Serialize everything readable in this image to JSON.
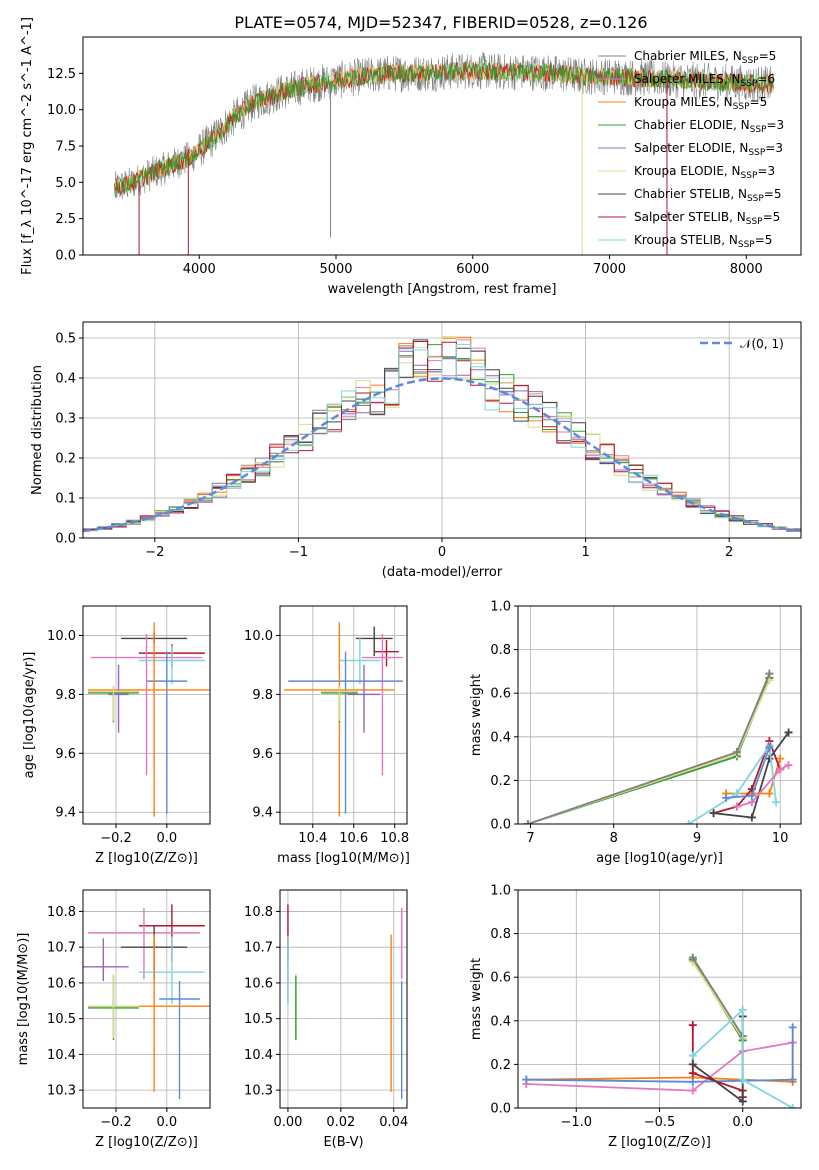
{
  "figure": {
    "title": "PLATE=0574, MJD=52347, FIBERID=0528, z=0.126"
  },
  "colors": {
    "chabrier_miles": "#808080",
    "salpeter_miles": "#e377c2",
    "kroupa_miles": "#ff7f0e",
    "chabrier_elodie": "#2ca02c",
    "salpeter_elodie": "#9467bd",
    "kroupa_elodie": "#dbdb8d",
    "chabrier_stelib": "#444444",
    "salpeter_stelib": "#b2182b",
    "kroupa_stelib": "#7fd6dd",
    "gaussian": "#5b8bd9",
    "blue_extra": "#5b8bd9",
    "pink_extra": "#e377c2",
    "grid": "#b0b0b0"
  },
  "chart_data": [
    {
      "id": "spectrum",
      "type": "line",
      "title": "PLATE=0574, MJD=52347, FIBERID=0528, z=0.126",
      "xlabel": "wavelength [Angstrom, rest frame]",
      "ylabel": "Flux [f_λ 10^-17 erg cm^-2 s^-1 A^-1]",
      "xlim": [
        3150,
        8400
      ],
      "ylim": [
        0,
        15
      ],
      "xticks": [
        4000,
        5000,
        6000,
        7000,
        8000
      ],
      "yticks": [
        "0.0",
        "2.5",
        "5.0",
        "7.5",
        "10.0",
        "12.5"
      ],
      "grid": false,
      "legend_position": "upper right",
      "legend": [
        "Chabrier MILES, N_SSP=5",
        "Salpeter MILES, N_SSP=6",
        "Kroupa MILES, N_SSP=5",
        "Chabrier ELODIE, N_SSP=3",
        "Salpeter ELODIE, N_SSP=3",
        "Kroupa ELODIE, N_SSP=3",
        "Chabrier STELIB, N_SSP=5",
        "Salpeter STELIB, N_SSP=5",
        "Kroupa STELIB, N_SSP=5"
      ],
      "continuum": {
        "x": [
          3380,
          3500,
          3650,
          3800,
          3950,
          4100,
          4250,
          4400,
          4600,
          4800,
          5000,
          5200,
          5400,
          5600,
          5800,
          6000,
          6200,
          6400,
          6600,
          6800,
          7000,
          7200,
          7400,
          7600,
          7800,
          8000,
          8200
        ],
        "y": [
          4.6,
          4.9,
          5.6,
          6.2,
          6.8,
          8.0,
          9.4,
          10.5,
          11.2,
          11.7,
          12.0,
          12.3,
          12.5,
          12.5,
          12.6,
          12.7,
          12.6,
          12.6,
          12.5,
          12.3,
          12.3,
          12.2,
          12.1,
          12.0,
          11.9,
          11.8,
          11.7
        ]
      },
      "spikes": [
        {
          "x": 3560,
          "y": 0.0
        },
        {
          "x": 3920,
          "y": 0.0
        },
        {
          "x": 4960,
          "y": 1.2
        },
        {
          "x": 6800,
          "y": 0.0
        },
        {
          "x": 7420,
          "y": 0.0
        }
      ]
    },
    {
      "id": "residuals",
      "type": "histogram",
      "xlabel": "(data-model)/error",
      "ylabel": "Normed distribution",
      "xlim": [
        -2.5,
        2.5
      ],
      "ylim": [
        0,
        0.54
      ],
      "xticks": [
        "−2",
        "−1",
        "0",
        "1",
        "2"
      ],
      "yticks": [
        "0.0",
        "0.1",
        "0.2",
        "0.3",
        "0.4",
        "0.5"
      ],
      "grid": true,
      "legend": [
        "𝒩(0, 1)"
      ],
      "legend_position": "upper right",
      "bin_width": 0.1,
      "bin_start": -2.5,
      "gaussian": {
        "mean": 0,
        "sigma": 1
      }
    },
    {
      "id": "age_vs_Z",
      "type": "errorbar",
      "xlabel": "Z [log10(Z/Z⊙)]",
      "ylabel": "age [log10(age/yr)]",
      "xlim": [
        -0.33,
        0.17
      ],
      "ylim": [
        9.36,
        10.1
      ],
      "xticks": [
        "−0.2",
        "0.0"
      ],
      "xtick_values": [
        -0.2,
        0.0
      ],
      "yticks": [
        "9.4",
        "9.6",
        "9.8",
        "10.0"
      ],
      "ytick_values": [
        9.4,
        9.6,
        9.8,
        10.0
      ],
      "grid": true,
      "points": [
        {
          "c": "chabrier_stelib",
          "x": -0.05,
          "xerr": 0.13,
          "y": 9.99,
          "yerr": [
            0.02,
            0.02
          ]
        },
        {
          "c": "salpeter_stelib",
          "x": 0.02,
          "xerr": 0.13,
          "y": 9.94,
          "yerr": [
            0.05,
            0.03
          ]
        },
        {
          "c": "pink_extra",
          "x": -0.08,
          "xerr": 0.22,
          "y": 9.925,
          "yerr": [
            0.4,
            0.08
          ]
        },
        {
          "c": "kroupa_stelib",
          "x": 0.02,
          "xerr": 0.13,
          "y": 9.915,
          "yerr": [
            0.08,
            0.05
          ]
        },
        {
          "c": "blue_extra",
          "x": 0.0,
          "xerr": 0.08,
          "y": 9.845,
          "yerr": [
            0.45,
            0.1
          ]
        },
        {
          "c": "kroupa_miles",
          "x": -0.05,
          "xerr": 0.26,
          "y": 9.815,
          "yerr": [
            0.43,
            0.23
          ]
        },
        {
          "c": "chabrier_elodie",
          "x": -0.21,
          "xerr": 0.1,
          "y": 9.805,
          "yerr": [
            0.1,
            0.02
          ]
        },
        {
          "c": "salpeter_elodie",
          "x": -0.19,
          "xerr": 0.04,
          "y": 9.8,
          "yerr": [
            0.13,
            0.1
          ]
        },
        {
          "c": "kroupa_elodie",
          "x": -0.21,
          "xerr": 0.1,
          "y": 9.81,
          "yerr": [
            0.1,
            0.02
          ]
        }
      ]
    },
    {
      "id": "age_vs_mass",
      "type": "errorbar",
      "xlabel": "mass [log10(M/M⊙)]",
      "ylabel": "",
      "xlim": [
        10.24,
        10.86
      ],
      "ylim": [
        9.36,
        10.1
      ],
      "xticks": [
        "10.4",
        "10.6",
        "10.8"
      ],
      "xtick_values": [
        10.4,
        10.6,
        10.8
      ],
      "yticks": [
        "9.4",
        "9.6",
        "9.8",
        "10.0"
      ],
      "ytick_values": [
        9.4,
        9.6,
        9.8,
        10.0
      ],
      "grid": true,
      "points": [
        {
          "c": "chabrier_stelib",
          "x": 10.7,
          "xerr": 0.09,
          "y": 9.99,
          "yerr": [
            0.06,
            0.04
          ]
        },
        {
          "c": "salpeter_stelib",
          "x": 10.76,
          "xerr": 0.06,
          "y": 9.945,
          "yerr": [
            0.05,
            0.04
          ]
        },
        {
          "c": "pink_extra",
          "x": 10.74,
          "xerr": 0.1,
          "y": 9.925,
          "yerr": [
            0.4,
            0.08
          ]
        },
        {
          "c": "kroupa_stelib",
          "x": 10.63,
          "xerr": 0.1,
          "y": 9.915,
          "yerr": [
            0.08,
            0.08
          ]
        },
        {
          "c": "blue_extra",
          "x": 10.56,
          "xerr": 0.28,
          "y": 9.845,
          "yerr": [
            0.45,
            0.1
          ]
        },
        {
          "c": "kroupa_miles",
          "x": 10.53,
          "xerr": 0.27,
          "y": 9.815,
          "yerr": [
            0.43,
            0.23
          ]
        },
        {
          "c": "chabrier_elodie",
          "x": 10.53,
          "xerr": 0.09,
          "y": 9.805,
          "yerr": [
            0.1,
            0.02
          ]
        },
        {
          "c": "salpeter_elodie",
          "x": 10.65,
          "xerr": 0.08,
          "y": 9.8,
          "yerr": [
            0.13,
            0.1
          ]
        },
        {
          "c": "kroupa_elodie",
          "x": 10.53,
          "xerr": 0.09,
          "y": 9.81,
          "yerr": [
            0.1,
            0.02
          ]
        }
      ]
    },
    {
      "id": "weight_vs_age",
      "type": "line",
      "xlabel": "age [log10(age/yr)]",
      "ylabel": "mass weight",
      "xlim": [
        6.85,
        10.25
      ],
      "ylim": [
        0,
        1
      ],
      "xticks": [
        "7",
        "8",
        "9",
        "10"
      ],
      "xtick_values": [
        7,
        8,
        9,
        10
      ],
      "yticks": [
        "0.0",
        "0.2",
        "0.4",
        "0.6",
        "0.8",
        "1.0"
      ],
      "ytick_values": [
        0,
        0.2,
        0.4,
        0.6,
        0.8,
        1.0
      ],
      "grid": true,
      "series": [
        {
          "c": "chabrier_elodie",
          "x": [
            6.97,
            9.48,
            9.87
          ],
          "y": [
            0.0,
            0.31,
            0.67
          ]
        },
        {
          "c": "kroupa_elodie",
          "x": [
            6.97,
            9.48,
            9.87
          ],
          "y": [
            0.0,
            0.32,
            0.66
          ]
        },
        {
          "c": "chabrier_miles",
          "x": [
            6.97,
            9.48,
            9.87
          ],
          "y": [
            0.0,
            0.33,
            0.69
          ]
        },
        {
          "c": "kroupa_miles",
          "x": [
            9.35,
            9.48,
            9.66,
            9.87,
            10.0
          ],
          "y": [
            0.14,
            0.14,
            0.14,
            0.14,
            0.3
          ]
        },
        {
          "c": "salpeter_stelib",
          "x": [
            9.2,
            9.48,
            9.66,
            9.87,
            10.0
          ],
          "y": [
            0.05,
            0.08,
            0.16,
            0.38,
            0.25
          ]
        },
        {
          "c": "chabrier_stelib",
          "x": [
            9.2,
            9.66,
            9.87,
            10.1
          ],
          "y": [
            0.05,
            0.03,
            0.3,
            0.42
          ]
        },
        {
          "c": "kroupa_stelib",
          "x": [
            8.9,
            9.48,
            9.87,
            9.95
          ],
          "y": [
            0.0,
            0.14,
            0.36,
            0.1
          ]
        },
        {
          "c": "pink_extra",
          "x": [
            9.48,
            9.66,
            10.0,
            10.1
          ],
          "y": [
            0.08,
            0.1,
            0.25,
            0.27
          ]
        },
        {
          "c": "blue_extra",
          "x": [
            9.35,
            9.66,
            9.87
          ],
          "y": [
            0.12,
            0.13,
            0.35
          ]
        }
      ]
    },
    {
      "id": "mass_vs_Z",
      "type": "errorbar",
      "xlabel": "Z [log10(Z/Z⊙)]",
      "ylabel": "mass [log10(M/M⊙)]",
      "xlim": [
        -0.33,
        0.17
      ],
      "ylim": [
        10.25,
        10.86
      ],
      "xticks": [
        "−0.2",
        "0.0"
      ],
      "xtick_values": [
        -0.2,
        0.0
      ],
      "yticks": [
        "10.3",
        "10.4",
        "10.5",
        "10.6",
        "10.7",
        "10.8"
      ],
      "ytick_values": [
        10.3,
        10.4,
        10.5,
        10.6,
        10.7,
        10.8
      ],
      "grid": true,
      "points": [
        {
          "c": "salpeter_stelib",
          "x": 0.02,
          "xerr": 0.13,
          "y": 10.76,
          "yerr": [
            0.1,
            0.06
          ]
        },
        {
          "c": "pink_extra",
          "x": -0.09,
          "xerr": 0.22,
          "y": 10.74,
          "yerr": [
            0.13,
            0.07
          ]
        },
        {
          "c": "chabrier_stelib",
          "x": -0.05,
          "xerr": 0.13,
          "y": 10.7,
          "yerr": [
            0.09,
            0.06
          ]
        },
        {
          "c": "salpeter_elodie",
          "x": -0.25,
          "xerr": 0.1,
          "y": 10.645,
          "yerr": [
            0.04,
            0.08
          ]
        },
        {
          "c": "kroupa_stelib",
          "x": 0.02,
          "xerr": 0.13,
          "y": 10.63,
          "yerr": [
            0.09,
            0.1
          ]
        },
        {
          "c": "blue_extra",
          "x": 0.05,
          "xerr": 0.08,
          "y": 10.555,
          "yerr": [
            0.28,
            0.05
          ]
        },
        {
          "c": "kroupa_miles",
          "x": -0.05,
          "xerr": 0.26,
          "y": 10.535,
          "yerr": [
            0.24,
            0.2
          ]
        },
        {
          "c": "chabrier_elodie",
          "x": -0.21,
          "xerr": 0.1,
          "y": 10.53,
          "yerr": [
            0.09,
            0.09
          ]
        },
        {
          "c": "kroupa_elodie",
          "x": -0.21,
          "xerr": 0.1,
          "y": 10.535,
          "yerr": [
            0.09,
            0.09
          ]
        }
      ]
    },
    {
      "id": "mass_vs_ebv",
      "type": "errorbar",
      "xlabel": "E(B-V)",
      "ylabel": "",
      "xlim": [
        -0.003,
        0.045
      ],
      "ylim": [
        10.25,
        10.86
      ],
      "xticks": [
        "0.00",
        "0.02",
        "0.04"
      ],
      "xtick_values": [
        0.0,
        0.02,
        0.04
      ],
      "yticks": [
        "10.3",
        "10.4",
        "10.5",
        "10.6",
        "10.7",
        "10.8"
      ],
      "ytick_values": [
        10.3,
        10.4,
        10.5,
        10.6,
        10.7,
        10.8
      ],
      "grid": true,
      "points": [
        {
          "c": "salpeter_stelib",
          "x": 0.0,
          "xerr": 0,
          "y": 10.76,
          "yerr": [
            0.1,
            0.06
          ]
        },
        {
          "c": "salpeter_elodie",
          "x": 0.0,
          "xerr": 0,
          "y": 10.645,
          "yerr": [
            0.1,
            0.08
          ]
        },
        {
          "c": "kroupa_stelib",
          "x": 0.0,
          "xerr": 0,
          "y": 10.63,
          "yerr": [
            0.09,
            0.1
          ]
        },
        {
          "c": "kroupa_elodie",
          "x": 0.003,
          "xerr": 0,
          "y": 10.535,
          "yerr": [
            0.09,
            0.09
          ]
        },
        {
          "c": "chabrier_elodie",
          "x": 0.003,
          "xerr": 0,
          "y": 10.53,
          "yerr": [
            0.09,
            0.09
          ]
        },
        {
          "c": "kroupa_miles",
          "x": 0.039,
          "xerr": 0,
          "y": 10.535,
          "yerr": [
            0.24,
            0.2
          ]
        },
        {
          "c": "pink_extra",
          "x": 0.043,
          "xerr": 0,
          "y": 10.74,
          "yerr": [
            0.13,
            0.07
          ]
        },
        {
          "c": "blue_extra",
          "x": 0.043,
          "xerr": 0,
          "y": 10.555,
          "yerr": [
            0.28,
            0.05
          ]
        }
      ]
    },
    {
      "id": "weight_vs_Z",
      "type": "line",
      "xlabel": "Z [log10(Z/Z⊙)]",
      "ylabel": "mass weight",
      "xlim": [
        -1.35,
        0.35
      ],
      "ylim": [
        0,
        1
      ],
      "xticks": [
        "−1.0",
        "−0.5",
        "0.0"
      ],
      "xtick_values": [
        -1.0,
        -0.5,
        0.0
      ],
      "yticks": [
        "0.0",
        "0.2",
        "0.4",
        "0.6",
        "0.8",
        "1.0"
      ],
      "ytick_values": [
        0,
        0.2,
        0.4,
        0.6,
        0.8,
        1.0
      ],
      "grid": true,
      "series": [
        {
          "c": "kroupa_miles",
          "x": [
            -1.3,
            -0.3,
            0.3,
            0.3
          ],
          "y": [
            0.13,
            0.14,
            0.12,
            0.3
          ]
        },
        {
          "c": "pink_extra",
          "x": [
            -1.3,
            -0.3,
            0.0,
            0.3
          ],
          "y": [
            0.11,
            0.08,
            0.26,
            0.3
          ]
        },
        {
          "c": "blue_extra",
          "x": [
            -1.3,
            -0.3,
            0.3,
            0.3
          ],
          "y": [
            0.13,
            0.12,
            0.13,
            0.37
          ]
        },
        {
          "c": "chabrier_elodie",
          "x": [
            -0.3,
            0.0
          ],
          "y": [
            0.68,
            0.31
          ]
        },
        {
          "c": "kroupa_elodie",
          "x": [
            -0.3,
            0.0
          ],
          "y": [
            0.67,
            0.32
          ]
        },
        {
          "c": "chabrier_miles",
          "x": [
            -0.3,
            0.0
          ],
          "y": [
            0.69,
            0.33
          ]
        },
        {
          "c": "salpeter_stelib",
          "x": [
            -0.3,
            -0.3,
            0.0,
            0.0
          ],
          "y": [
            0.38,
            0.16,
            0.08,
            0.05
          ]
        },
        {
          "c": "chabrier_stelib",
          "x": [
            -0.3,
            0.0,
            0.0
          ],
          "y": [
            0.2,
            0.03,
            0.42
          ]
        },
        {
          "c": "kroupa_stelib",
          "x": [
            -0.3,
            0.0,
            0.0,
            0.3
          ],
          "y": [
            0.24,
            0.45,
            0.13,
            0.0
          ]
        }
      ]
    }
  ]
}
